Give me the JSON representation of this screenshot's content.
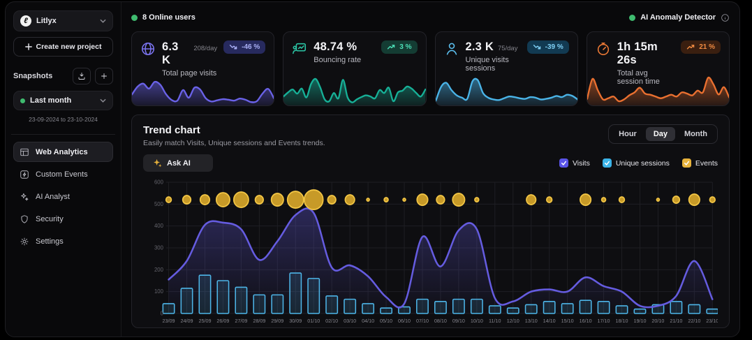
{
  "sidebar": {
    "project": {
      "name": "Litlyx",
      "logo_glyph": "ℓ"
    },
    "create_project_label": "Create new project",
    "snapshots_label": "Snapshots",
    "snapshot_selected": "Last month",
    "snapshot_range": "23-09-2024 to 23-10-2024",
    "nav": [
      {
        "label": "Web Analytics",
        "active": true
      },
      {
        "label": "Custom Events",
        "active": false
      },
      {
        "label": "AI Analyst",
        "active": false
      },
      {
        "label": "Security",
        "active": false
      },
      {
        "label": "Settings",
        "active": false
      }
    ]
  },
  "topbar": {
    "online_users": "8 Online users",
    "anomaly_detector": "AI Anomaly Detector"
  },
  "stat_cards": [
    {
      "value": "6.3 K",
      "per_day": "208/day",
      "label": "Total page visits",
      "badge": "-46 %",
      "trend": "down",
      "accent": "#7b74f0",
      "line": "#6a62e8",
      "badge_bg": "#272a5e",
      "badge_fg": "#aab0f5",
      "spark": [
        35,
        62,
        72,
        55,
        78,
        68,
        36,
        16,
        14,
        50,
        24,
        58,
        52,
        22,
        11,
        15,
        19,
        17,
        14,
        21,
        17,
        9,
        12,
        38,
        54,
        22
      ]
    },
    {
      "value": "48.74 %",
      "per_day": "",
      "label": "Bouncing rate",
      "badge": "3 %",
      "trend": "up",
      "accent": "#2bc4a4",
      "line": "#17b097",
      "badge_bg": "#143c33",
      "badge_fg": "#4ce0b8",
      "spark": [
        28,
        42,
        52,
        38,
        55,
        25,
        70,
        88,
        60,
        18,
        12,
        40,
        22,
        85,
        25,
        8,
        18,
        26,
        32,
        28,
        22,
        50,
        40,
        58,
        12,
        42,
        48,
        62,
        55,
        40,
        28,
        52
      ]
    },
    {
      "value": "2.3 K",
      "per_day": "75/day",
      "label": "Unique visits sessions",
      "badge": "-39 %",
      "trend": "down",
      "accent": "#5bc0f0",
      "line": "#4ab4e8",
      "badge_bg": "#123a52",
      "badge_fg": "#7fd0f5",
      "spark": [
        12,
        60,
        75,
        50,
        32,
        24,
        20,
        80,
        84,
        40,
        24,
        18,
        16,
        22,
        28,
        26,
        22,
        20,
        26,
        24,
        18,
        20,
        24,
        30,
        26,
        34,
        30,
        18
      ]
    },
    {
      "value": "1h 15m 26s",
      "per_day": "",
      "label": "Total avg session time",
      "badge": "21 %",
      "trend": "up",
      "accent": "#ed7a36",
      "line": "#ea7030",
      "badge_bg": "#3a1f10",
      "badge_fg": "#f08b42",
      "spark": [
        20,
        88,
        50,
        18,
        22,
        28,
        12,
        18,
        32,
        42,
        58,
        38,
        34,
        28,
        22,
        28,
        34,
        28,
        42,
        38,
        32,
        48,
        42,
        92,
        70,
        35,
        60,
        25
      ]
    }
  ],
  "trend": {
    "title": "Trend chart",
    "subtitle": "Easily match Visits, Unique sessions and Events trends.",
    "ask_ai_label": "Ask AI",
    "range_options": [
      "Hour",
      "Day",
      "Month"
    ],
    "range_selected": "Day",
    "legend": [
      {
        "label": "Visits",
        "color": "#5a54e8",
        "checked": true
      },
      {
        "label": "Unique sessions",
        "color": "#3cb4e8",
        "checked": true
      },
      {
        "label": "Events",
        "color": "#e8b33c",
        "checked": true
      }
    ]
  },
  "chart_data": {
    "type": "mixed",
    "title": "Trend chart",
    "x": [
      "23/09",
      "24/09",
      "25/09",
      "26/09",
      "27/09",
      "28/09",
      "29/09",
      "30/09",
      "01/10",
      "02/10",
      "03/10",
      "04/10",
      "05/10",
      "06/10",
      "07/10",
      "08/10",
      "09/10",
      "10/10",
      "11/10",
      "12/10",
      "13/10",
      "14/10",
      "15/10",
      "16/10",
      "17/10",
      "18/10",
      "19/10",
      "20/10",
      "21/10",
      "22/10",
      "23/10"
    ],
    "ylim": [
      0,
      600
    ],
    "yticks": [
      0,
      100,
      200,
      300,
      400,
      500,
      600
    ],
    "grid": true,
    "legend_position": "top-right",
    "series": [
      {
        "name": "Visits",
        "type": "line-area",
        "color": "#655ce0",
        "values": [
          155,
          240,
          405,
          415,
          385,
          245,
          330,
          450,
          460,
          210,
          220,
          170,
          75,
          45,
          350,
          215,
          380,
          385,
          70,
          55,
          100,
          110,
          100,
          165,
          125,
          100,
          35,
          35,
          80,
          240,
          65
        ]
      },
      {
        "name": "Unique sessions",
        "type": "bar",
        "color": "#4db5e8",
        "values": [
          45,
          115,
          175,
          150,
          120,
          85,
          85,
          185,
          160,
          80,
          65,
          45,
          25,
          30,
          65,
          55,
          65,
          65,
          35,
          25,
          40,
          55,
          45,
          60,
          55,
          35,
          20,
          40,
          55,
          40,
          20
        ]
      },
      {
        "name": "Events",
        "type": "bubble",
        "color": "#e8b33c",
        "bubble_y": 520,
        "bubble_radii": [
          4,
          6,
          7,
          10,
          11,
          6,
          9,
          12,
          14,
          6,
          7,
          2,
          3,
          2,
          8,
          6,
          9,
          3,
          0,
          0,
          7,
          4,
          0,
          8,
          3,
          4,
          0,
          2,
          5,
          8,
          4
        ]
      }
    ]
  }
}
